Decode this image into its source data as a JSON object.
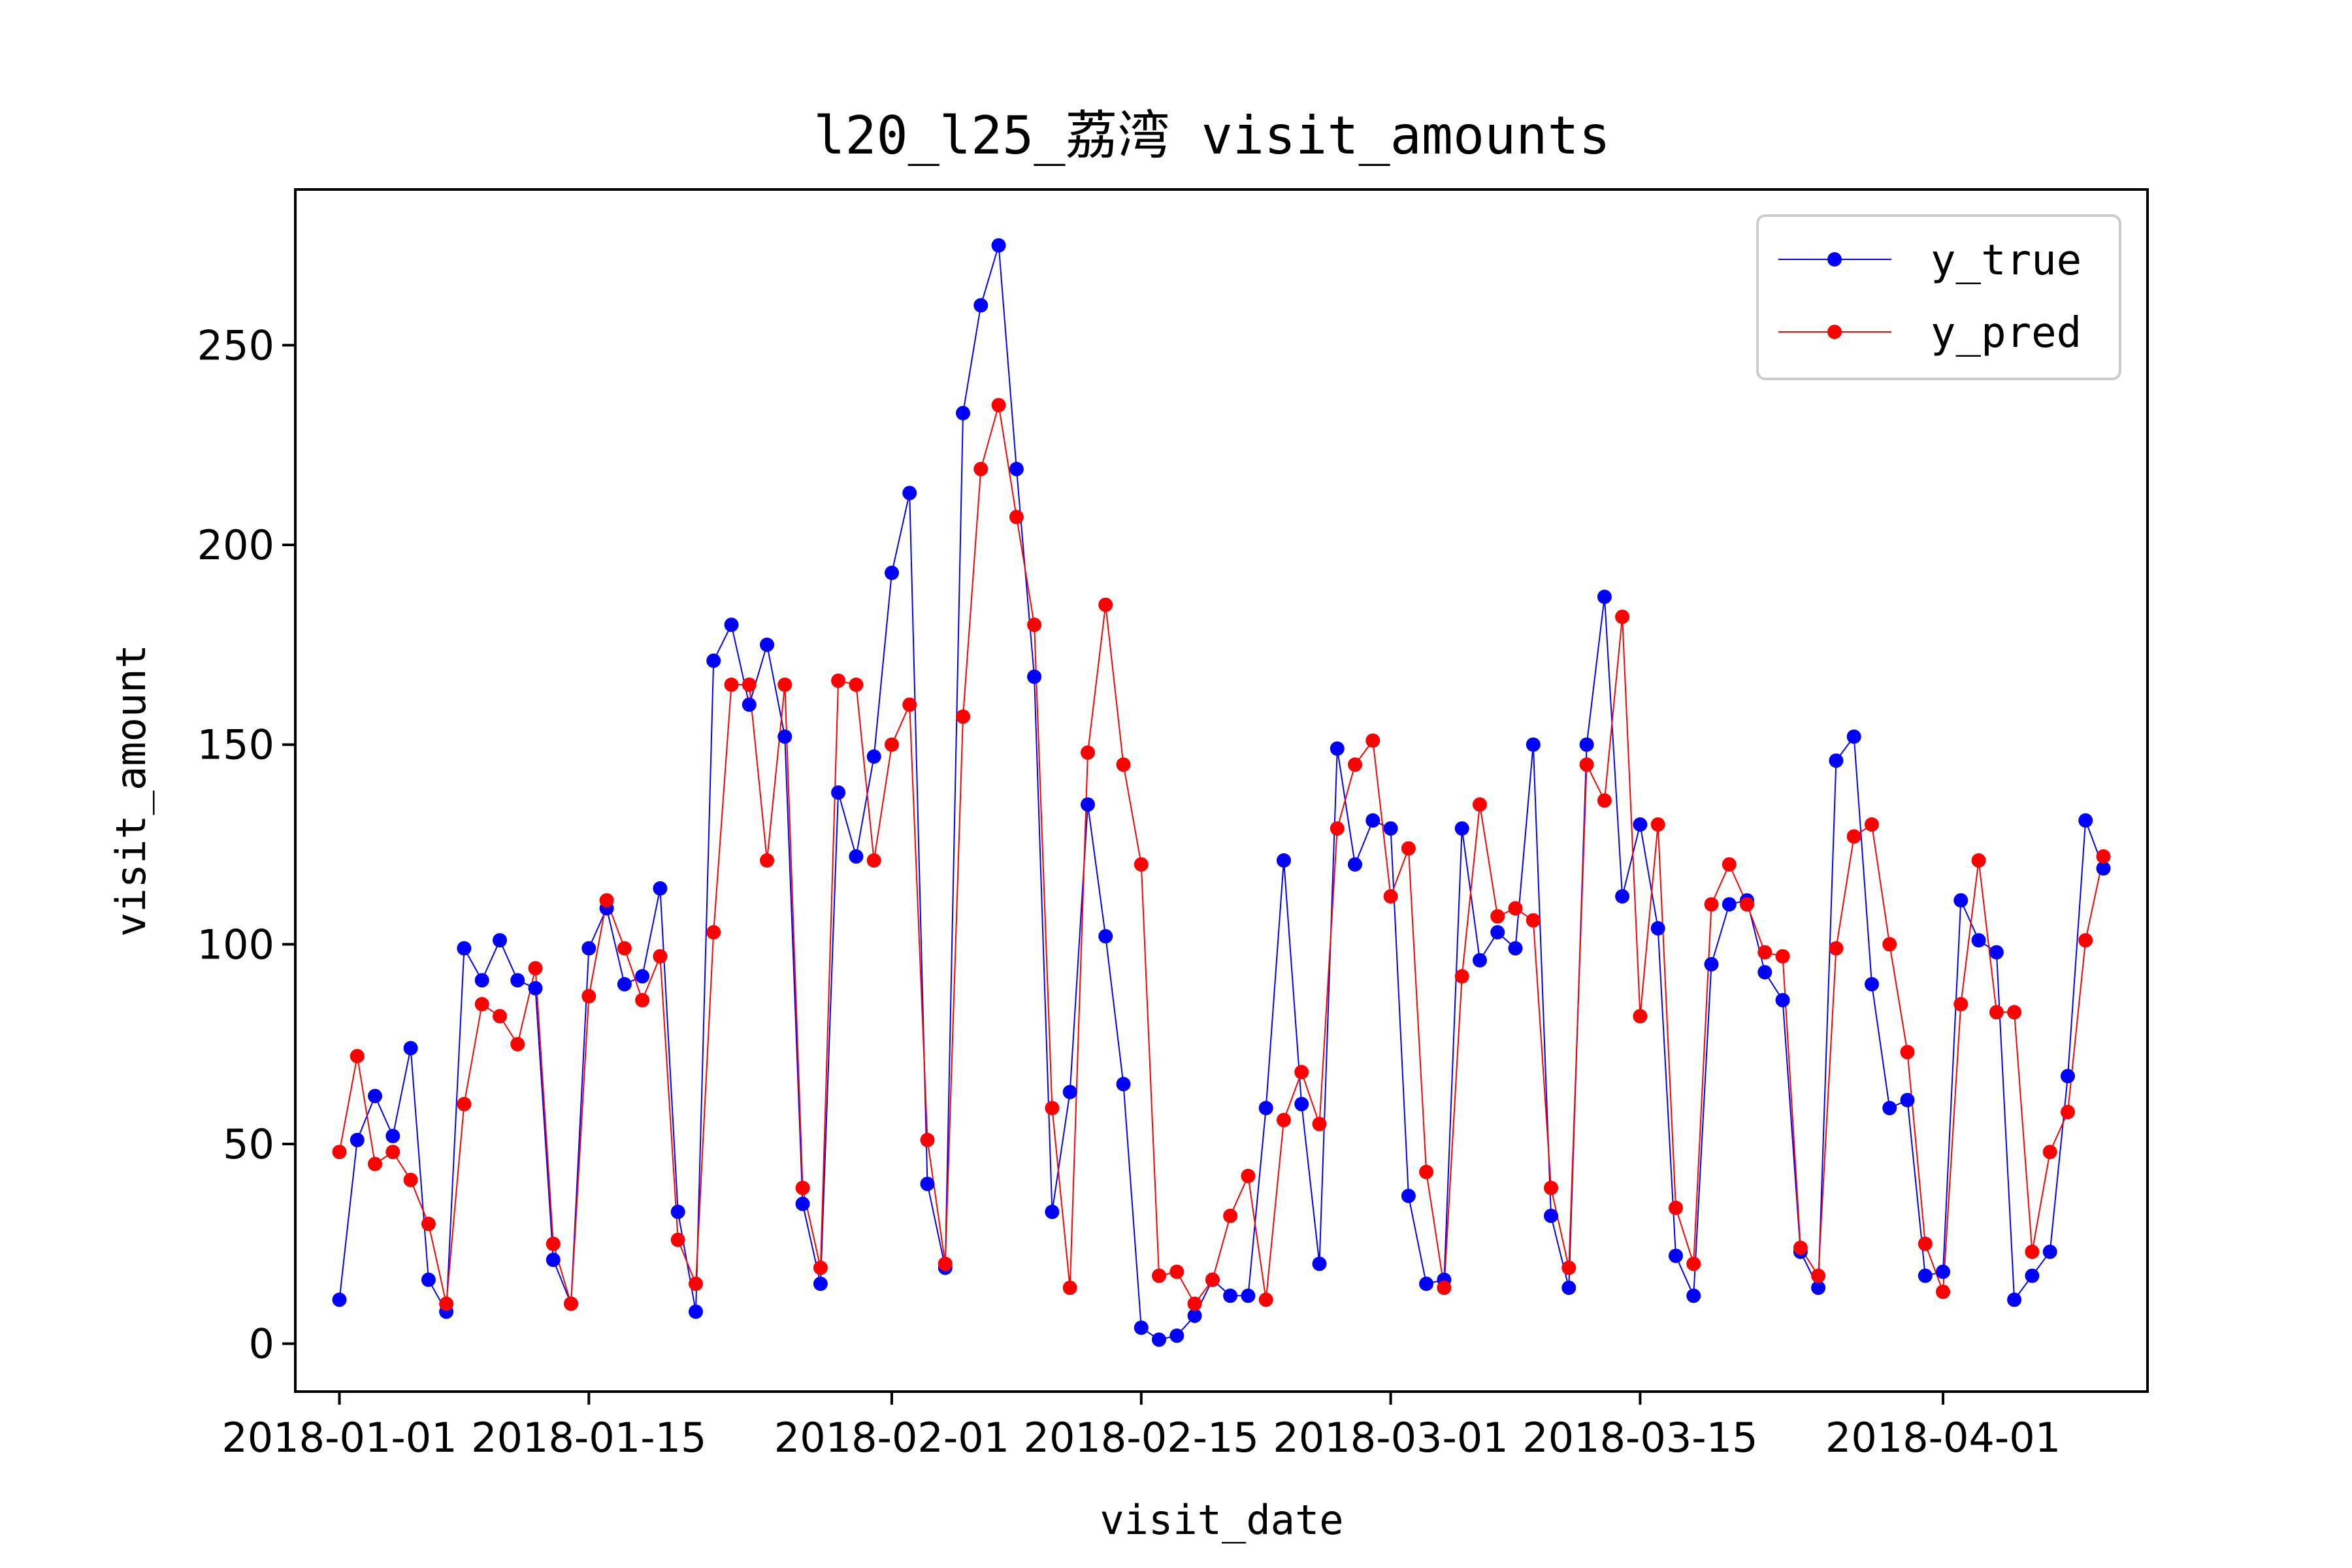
{
  "chart_data": {
    "type": "line",
    "title": "l20_l25_荔湾 visit_amounts",
    "xlabel": "visit_date",
    "ylabel": "visit_amount",
    "ylim": [
      -12,
      289
    ],
    "x_start": "2018-01-01",
    "x_tick_labels": [
      "2018-01-01",
      "2018-01-15",
      "2018-02-01",
      "2018-02-15",
      "2018-03-01",
      "2018-03-15",
      "2018-04-01"
    ],
    "y_ticks": [
      0,
      50,
      100,
      150,
      200,
      250
    ],
    "grid": false,
    "legend_position": "top-right",
    "colors": {
      "y_true": "#0000ff",
      "y_pred": "#ff0000"
    },
    "series": [
      {
        "name": "y_true",
        "values": [
          11,
          51,
          62,
          52,
          74,
          16,
          8,
          99,
          91,
          101,
          91,
          89,
          21,
          10,
          99,
          109,
          90,
          92,
          114,
          33,
          8,
          171,
          180,
          160,
          175,
          152,
          35,
          15,
          138,
          122,
          147,
          193,
          213,
          40,
          19,
          233,
          260,
          275,
          219,
          167,
          33,
          63,
          135,
          102,
          65,
          4,
          1,
          2,
          7,
          16,
          12,
          12,
          59,
          121,
          60,
          20,
          149,
          120,
          131,
          129,
          37,
          15,
          16,
          129,
          96,
          103,
          99,
          150,
          32,
          14,
          150,
          187,
          112,
          130,
          104,
          22,
          12,
          95,
          110,
          111,
          93,
          86,
          23,
          14,
          146,
          152,
          90,
          59,
          61,
          17,
          18,
          111,
          101,
          98,
          11,
          17,
          23,
          67,
          131,
          119
        ]
      },
      {
        "name": "y_pred",
        "values": [
          48,
          72,
          45,
          48,
          41,
          30,
          10,
          60,
          85,
          82,
          75,
          94,
          25,
          10,
          87,
          111,
          99,
          86,
          97,
          26,
          15,
          103,
          165,
          165,
          121,
          165,
          39,
          19,
          166,
          165,
          121,
          150,
          160,
          51,
          20,
          157,
          219,
          235,
          207,
          180,
          59,
          14,
          148,
          185,
          145,
          120,
          17,
          18,
          10,
          16,
          32,
          42,
          11,
          56,
          68,
          55,
          129,
          145,
          151,
          112,
          124,
          43,
          14,
          92,
          135,
          107,
          109,
          106,
          39,
          19,
          145,
          136,
          182,
          82,
          130,
          34,
          20,
          110,
          120,
          110,
          98,
          97,
          24,
          17,
          99,
          127,
          130,
          100,
          73,
          25,
          13,
          85,
          121,
          83,
          83,
          23,
          48,
          58,
          101,
          122
        ]
      }
    ]
  }
}
